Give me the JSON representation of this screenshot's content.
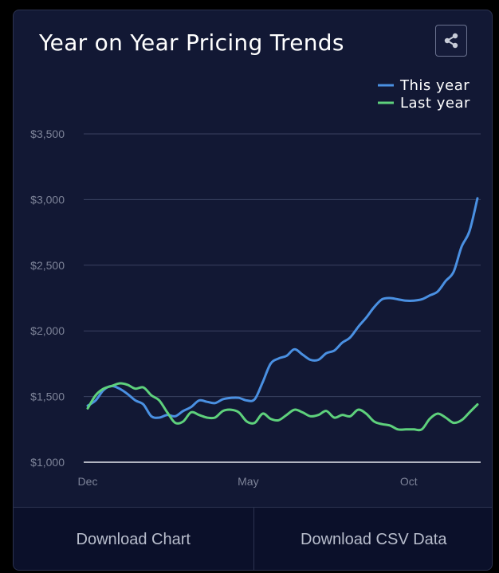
{
  "title": "Year on Year Pricing Trends",
  "share_icon": "share-icon",
  "footer": {
    "download_chart_label": "Download Chart",
    "download_csv_label": "Download CSV Data"
  },
  "chart_data": {
    "type": "line",
    "title": "Year on Year Pricing Trends",
    "xlabel": "",
    "ylabel": "",
    "x_tick_labels": [
      "Dec",
      "May",
      "Oct"
    ],
    "y_tick_labels": [
      "$1,000",
      "$1,500",
      "$2,000",
      "$2,500",
      "$3,000",
      "$3,500"
    ],
    "y_ticks": [
      1000,
      1500,
      2000,
      2500,
      3000,
      3500
    ],
    "ylim": [
      1000,
      3500
    ],
    "x_index_range": [
      0,
      51
    ],
    "x_tick_index": [
      0,
      21,
      42
    ],
    "grid": true,
    "legend_position": "top-right",
    "series": [
      {
        "name": "This year",
        "color": "#4a90e2",
        "values": [
          1430,
          1470,
          1550,
          1580,
          1560,
          1520,
          1470,
          1440,
          1350,
          1340,
          1360,
          1350,
          1390,
          1420,
          1470,
          1460,
          1450,
          1480,
          1490,
          1490,
          1470,
          1480,
          1610,
          1750,
          1790,
          1810,
          1860,
          1820,
          1780,
          1780,
          1830,
          1850,
          1910,
          1950,
          2030,
          2100,
          2180,
          2240,
          2250,
          2240,
          2230,
          2230,
          2240,
          2270,
          2300,
          2380,
          2450,
          2640,
          2760,
          3010
        ]
      },
      {
        "name": "Last year",
        "color": "#5ed17c",
        "values": [
          1410,
          1510,
          1560,
          1580,
          1600,
          1590,
          1560,
          1570,
          1510,
          1470,
          1380,
          1300,
          1310,
          1380,
          1360,
          1340,
          1340,
          1390,
          1400,
          1380,
          1310,
          1300,
          1370,
          1330,
          1320,
          1360,
          1400,
          1380,
          1350,
          1360,
          1390,
          1340,
          1360,
          1350,
          1400,
          1370,
          1310,
          1290,
          1280,
          1250,
          1250,
          1250,
          1250,
          1330,
          1370,
          1340,
          1300,
          1320,
          1380,
          1440
        ]
      }
    ]
  }
}
